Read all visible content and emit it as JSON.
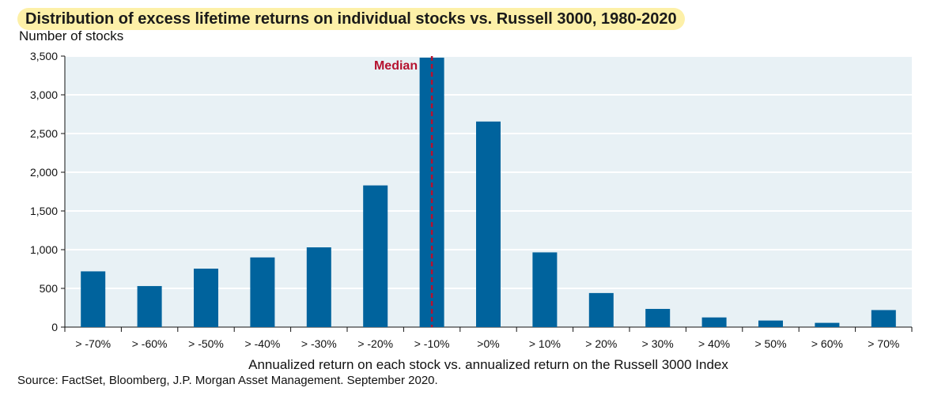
{
  "title": "Distribution of excess lifetime returns on individual stocks vs. Russell 3000, 1980-2020",
  "source": "Source: FactSet, Bloomberg, J.P. Morgan Asset Management. September 2020.",
  "colors": {
    "bar": "#00639d",
    "plot_bg": "#e8f1f5",
    "median": "#b5122f",
    "title_bg": "#fdf0a8"
  },
  "chart_data": {
    "type": "bar",
    "title": "Distribution of excess lifetime returns on individual stocks vs. Russell 3000, 1980-2020",
    "ylabel": "Number of stocks",
    "xlabel": "Annualized return on each stock vs. annualized return on the Russell 3000 Index",
    "categories": [
      "> -70%",
      "> -60%",
      "> -50%",
      "> -40%",
      "> -30%",
      "> -20%",
      "> -10%",
      ">0%",
      "> 10%",
      "> 20%",
      "> 30%",
      "> 40%",
      "> 50%",
      "> 60%",
      "> 70%"
    ],
    "values": [
      720,
      530,
      755,
      900,
      1030,
      1830,
      3480,
      2655,
      965,
      440,
      235,
      125,
      85,
      55,
      220
    ],
    "ylim": [
      0,
      3500
    ],
    "yticks": [
      0,
      500,
      1000,
      1500,
      2000,
      2500,
      3000,
      3500
    ],
    "ytick_labels": [
      "0",
      "500",
      "1,000",
      "1,500",
      "2,000",
      "2,500",
      "3,000",
      "3,500"
    ],
    "grid": true,
    "annotations": [
      {
        "text": "Median",
        "category_index": 6,
        "type": "vertical-dashed-line"
      }
    ]
  }
}
